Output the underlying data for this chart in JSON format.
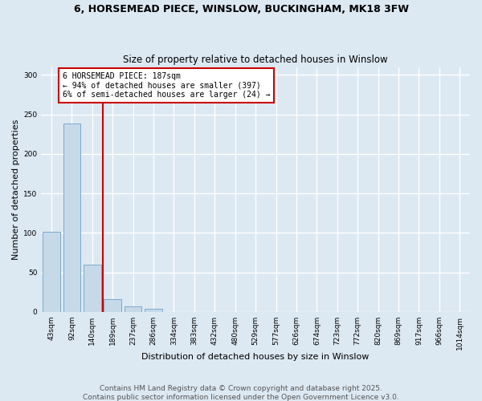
{
  "title_line1": "6, HORSEMEAD PIECE, WINSLOW, BUCKINGHAM, MK18 3FW",
  "title_line2": "Size of property relative to detached houses in Winslow",
  "xlabel": "Distribution of detached houses by size in Winslow",
  "ylabel": "Number of detached properties",
  "categories": [
    "43sqm",
    "92sqm",
    "140sqm",
    "189sqm",
    "237sqm",
    "286sqm",
    "334sqm",
    "383sqm",
    "432sqm",
    "480sqm",
    "529sqm",
    "577sqm",
    "626sqm",
    "674sqm",
    "723sqm",
    "772sqm",
    "820sqm",
    "869sqm",
    "917sqm",
    "966sqm",
    "1014sqm"
  ],
  "values": [
    101,
    238,
    60,
    16,
    7,
    4,
    0,
    0,
    0,
    0,
    0,
    0,
    0,
    0,
    0,
    0,
    0,
    0,
    0,
    0,
    0
  ],
  "bar_color": "#c6d9e8",
  "bar_edge_color": "#7aaacb",
  "vline_color": "#cc0000",
  "vline_x_index": 2.5,
  "annotation_text": "6 HORSEMEAD PIECE: 187sqm\n← 94% of detached houses are smaller (397)\n6% of semi-detached houses are larger (24) →",
  "annotation_box_color": "#cc0000",
  "ylim": [
    0,
    310
  ],
  "yticks": [
    0,
    50,
    100,
    150,
    200,
    250,
    300
  ],
  "background_color": "#dce8f2",
  "grid_color": "#ffffff",
  "footer_line1": "Contains HM Land Registry data © Crown copyright and database right 2025.",
  "footer_line2": "Contains public sector information licensed under the Open Government Licence v3.0.",
  "title_fontsize": 9,
  "subtitle_fontsize": 8.5,
  "xlabel_fontsize": 8,
  "ylabel_fontsize": 8,
  "tick_fontsize": 6.5,
  "footer_fontsize": 6.5
}
